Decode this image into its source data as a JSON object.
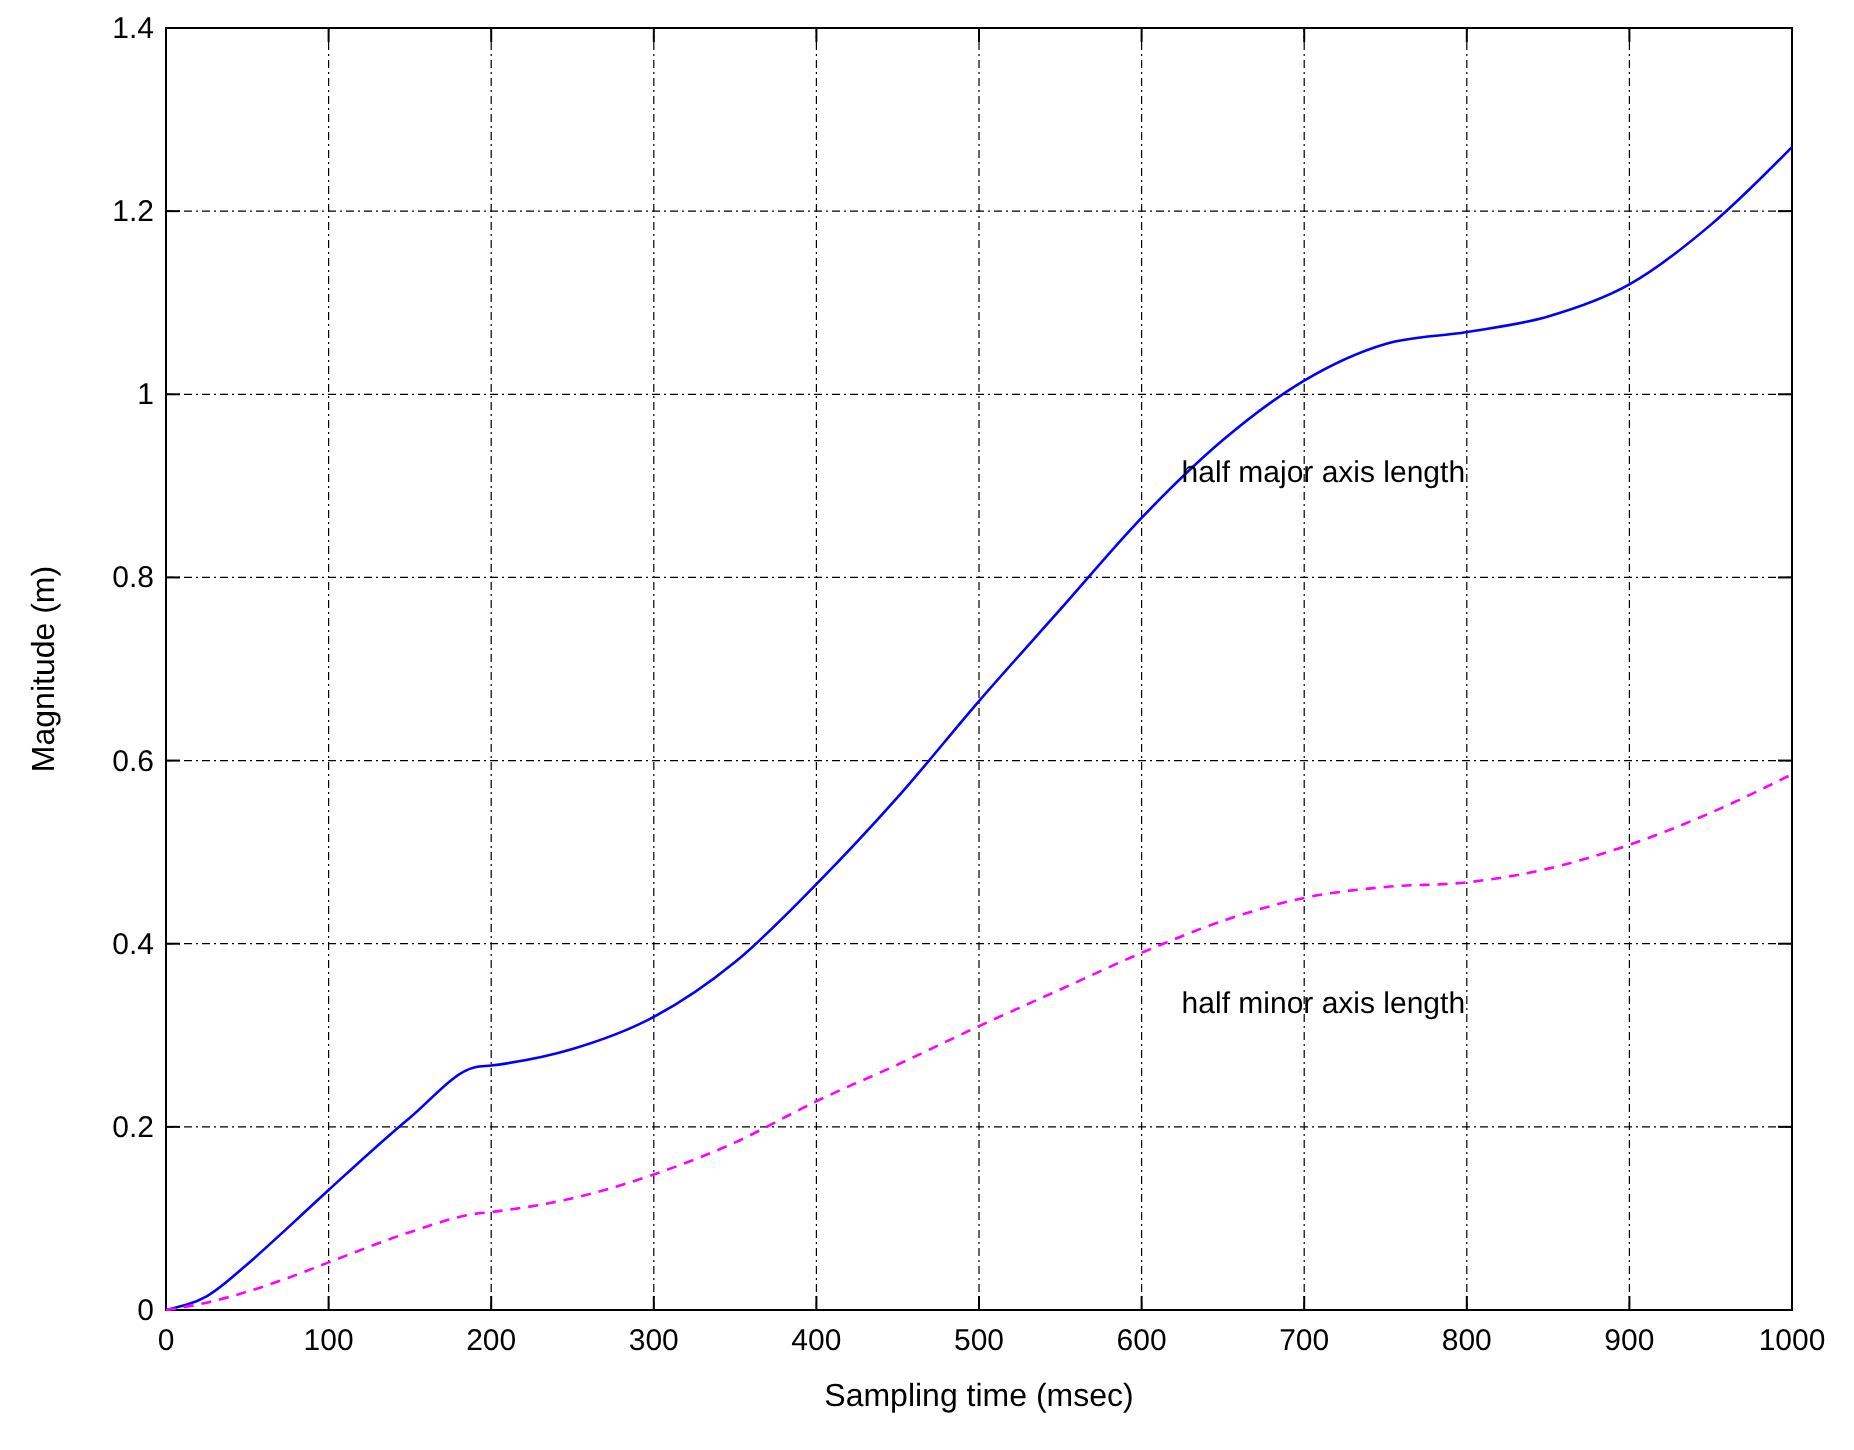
{
  "chart_data": {
    "type": "line",
    "xlabel": "Sampling time (msec)",
    "ylabel": "Magnitude (m)",
    "x": [
      0,
      25,
      50,
      75,
      100,
      150,
      190,
      200,
      250,
      300,
      350,
      400,
      450,
      500,
      550,
      600,
      650,
      700,
      750,
      800,
      850,
      900,
      950,
      1000
    ],
    "series": [
      {
        "name": "half major axis length",
        "color": "#0000ff",
        "line_style": "solid",
        "values": [
          0,
          0.015,
          0.05,
          0.09,
          0.131,
          0.21,
          0.265,
          0.267,
          0.285,
          0.32,
          0.38,
          0.465,
          0.56,
          0.665,
          0.765,
          0.865,
          0.95,
          1.015,
          1.055,
          1.068,
          1.085,
          1.12,
          1.185,
          1.27
        ]
      },
      {
        "name": "half minor axis length",
        "color": "#ff00ff",
        "line_style": "dashed",
        "values": [
          0,
          0.008,
          0.02,
          0.035,
          0.052,
          0.085,
          0.105,
          0.107,
          0.122,
          0.148,
          0.183,
          0.228,
          0.268,
          0.31,
          0.35,
          0.39,
          0.425,
          0.45,
          0.462,
          0.467,
          0.482,
          0.508,
          0.543,
          0.585
        ]
      }
    ],
    "xlim": [
      0,
      1000
    ],
    "xticks": [
      0,
      100,
      200,
      300,
      400,
      500,
      600,
      700,
      800,
      900,
      1000
    ],
    "ylim": [
      0,
      1.4
    ],
    "yticks": [
      0,
      0.2,
      0.4,
      0.6,
      0.8,
      1,
      1.2,
      1.4
    ],
    "grid": true,
    "legend": false,
    "marker": "none"
  }
}
